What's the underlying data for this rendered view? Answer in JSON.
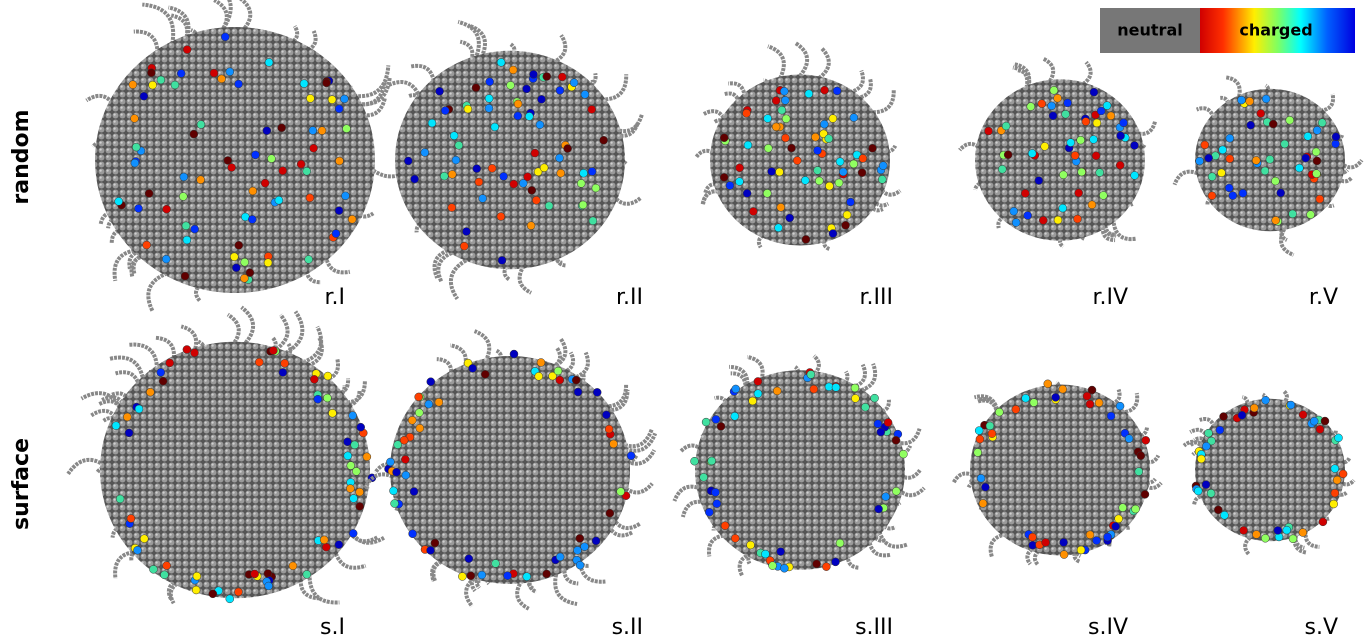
{
  "row_labels": [
    "random",
    "surface"
  ],
  "panels": [
    [
      "r.I",
      "r.II",
      "r.III",
      "r.IV",
      "r.V"
    ],
    [
      "s.I",
      "s.II",
      "s.III",
      "s.IV",
      "s.V"
    ]
  ],
  "legend": {
    "neutral": "neutral",
    "charged": "charged"
  }
}
